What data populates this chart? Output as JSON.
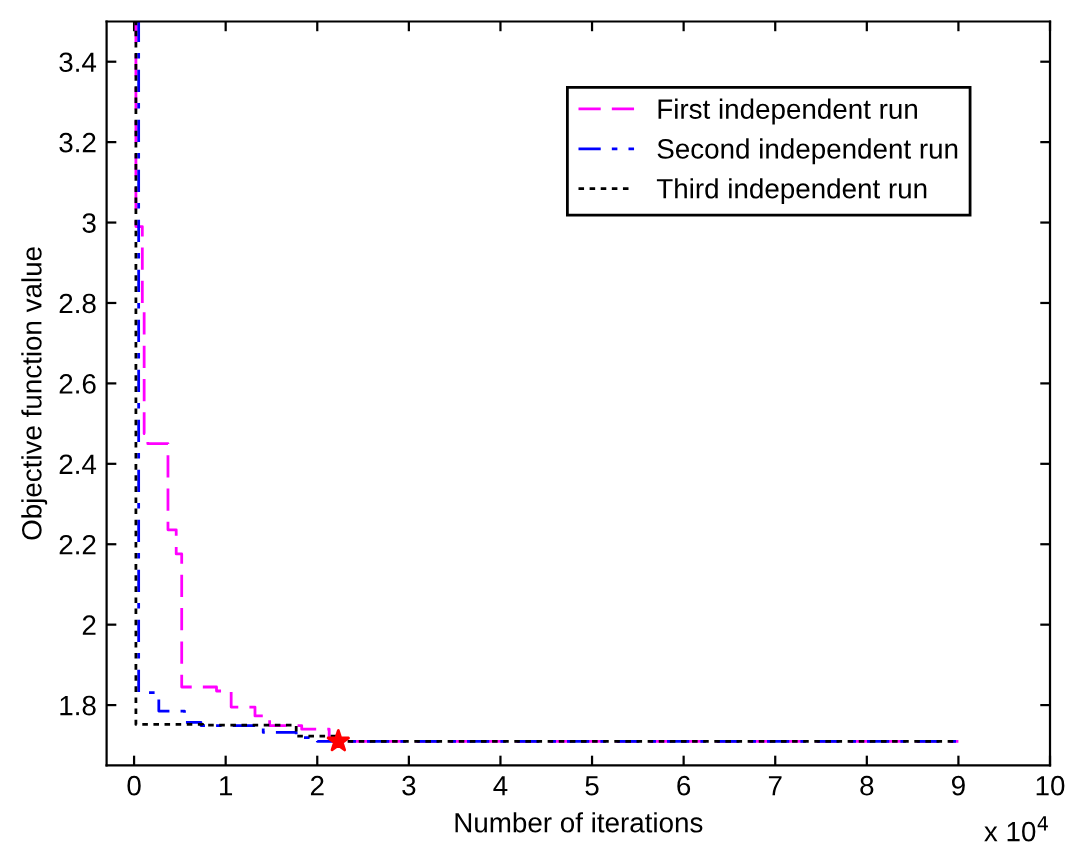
{
  "chart_data": {
    "type": "step",
    "xlabel": "Number of iterations",
    "ylabel": "Objective function value",
    "annotations": [
      "x 10$^{4}$"
    ],
    "xlim": [
      -0.3,
      10
    ],
    "xticks": [
      0,
      1,
      2,
      3,
      4,
      5,
      6,
      7,
      8,
      9,
      10
    ],
    "ylim": [
      1.65,
      3.5
    ],
    "yticks": [
      1.8,
      2,
      2.2,
      2.4,
      2.6,
      2.8,
      3,
      3.2,
      3.4
    ],
    "grid": false,
    "legend": "top right",
    "series": [
      {
        "name": "First independent run",
        "color": "#ff00ff",
        "line_style": "dashed",
        "marker": "none",
        "x": [
          0.01,
          0.02,
          0.09,
          0.11,
          0.15,
          0.37,
          0.46,
          0.52,
          0.9,
          1.06,
          1.32,
          1.48,
          1.83,
          2.13,
          2.2,
          9
        ],
        "values": [
          3.5,
          2.99,
          2.785,
          2.475,
          2.45,
          2.236,
          2.176,
          1.845,
          1.835,
          1.795,
          1.773,
          1.749,
          1.74,
          1.712,
          1.71,
          1.71
        ]
      },
      {
        "name": "Second independent run",
        "color": "#0000ff",
        "line_style": "dashdot",
        "marker": "none",
        "x": [
          0.03,
          0.05,
          0.27,
          0.55,
          0.73,
          1.41,
          1.77,
          2.0,
          9
        ],
        "values": [
          3.5,
          1.831,
          1.785,
          1.757,
          1.749,
          1.732,
          1.719,
          1.71,
          1.71
        ]
      },
      {
        "name": "Third independent run",
        "color": "#000000",
        "line_style": "dotted",
        "marker": "none",
        "x": [
          0,
          0.02,
          0.75,
          1.77,
          2.2,
          9
        ],
        "values": [
          3.5,
          1.752,
          1.75,
          1.723,
          1.71,
          1.71
        ]
      },
      {
        "type": "scatter",
        "color": "#ff0000",
        "marker": "star",
        "x": [
          2.23
        ],
        "values": [
          1.71
        ]
      }
    ]
  }
}
